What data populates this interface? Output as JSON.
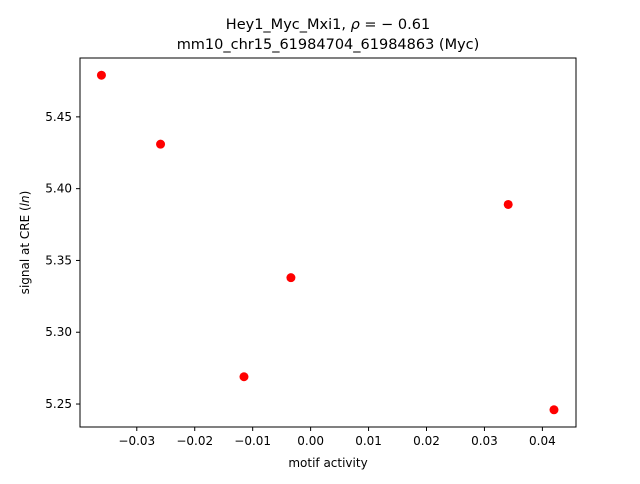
{
  "chart_data": {
    "type": "scatter",
    "title_line1_prefix": "Hey1_Myc_Mxi1, ",
    "title_rho_symbol": "ρ",
    "title_rho_suffix": " = − 0.61",
    "title_line2": "mm10_chr15_61984704_61984863 (Myc)",
    "xlabel": "motif activity",
    "ylabel_prefix": "signal at CRE (",
    "ylabel_italic": "ln",
    "ylabel_suffix": ")",
    "xlim": [
      -0.0398,
      0.0458
    ],
    "ylim": [
      5.234,
      5.491
    ],
    "xticks": [
      -0.03,
      -0.02,
      -0.01,
      0.0,
      0.01,
      0.02,
      0.03,
      0.04
    ],
    "xtick_labels": [
      "−0.03",
      "−0.02",
      "−0.01",
      "0.00",
      "0.01",
      "0.02",
      "0.03",
      "0.04"
    ],
    "yticks": [
      5.25,
      5.3,
      5.35,
      5.4,
      5.45
    ],
    "ytick_labels": [
      "5.25",
      "5.30",
      "5.35",
      "5.40",
      "5.45"
    ],
    "grid": false,
    "marker_color": "#ff0000",
    "points": [
      {
        "x": -0.0361,
        "y": 5.479
      },
      {
        "x": -0.0259,
        "y": 5.431
      },
      {
        "x": -0.0115,
        "y": 5.269
      },
      {
        "x": -0.0034,
        "y": 5.338
      },
      {
        "x": 0.0341,
        "y": 5.389
      },
      {
        "x": 0.042,
        "y": 5.246
      }
    ]
  }
}
